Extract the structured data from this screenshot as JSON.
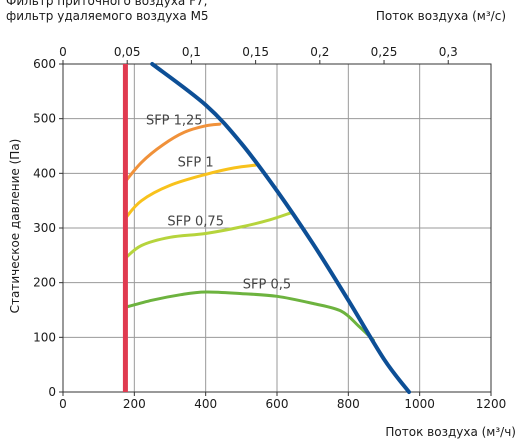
{
  "chart_data": {
    "type": "line",
    "title_lines": [
      "Фильтр приточного воздуха F7,",
      "фильтр удаляемого воздуха M5"
    ],
    "xlabel": "Поток воздуха (м³/ч)",
    "ylabel": "Статическое давление (Па)",
    "x2label": "Поток воздуха (м³/с)",
    "xlim": [
      0,
      1200
    ],
    "ylim": [
      0,
      600
    ],
    "x2lim": [
      0,
      0.3333
    ],
    "x_ticks": [
      0,
      200,
      400,
      600,
      800,
      1000,
      1200
    ],
    "y_ticks": [
      0,
      100,
      200,
      300,
      400,
      500,
      600
    ],
    "x2_ticks": [
      0,
      0.05,
      0.1,
      0.15,
      0.2,
      0.25,
      0.3
    ],
    "x2_tick_labels": [
      "0",
      "0,05",
      "0,1",
      "0,15",
      "0,2",
      "0,25",
      "0,3"
    ],
    "grid": true,
    "limit_line": {
      "x": 175,
      "y_range": [
        0,
        600
      ],
      "color": "#e03a50"
    },
    "fan_curve": {
      "color": "#0d4f96",
      "x": [
        250,
        400,
        500,
        600,
        700,
        800,
        900,
        970
      ],
      "y": [
        600,
        525,
        455,
        368,
        272,
        168,
        60,
        0
      ]
    },
    "series": [
      {
        "name": "SFP 1,25",
        "color": "#f0913a",
        "x": [
          175,
          220,
          280,
          340,
          400,
          440
        ],
        "y": [
          385,
          420,
          452,
          475,
          487,
          490
        ]
      },
      {
        "name": "SFP 1",
        "color": "#f8c21c",
        "x": [
          175,
          220,
          300,
          400,
          480,
          540
        ],
        "y": [
          318,
          350,
          378,
          398,
          410,
          415
        ]
      },
      {
        "name": "SFP 0,75",
        "color": "#b6d43c",
        "x": [
          175,
          220,
          300,
          400,
          500,
          580,
          640
        ],
        "y": [
          245,
          268,
          283,
          290,
          302,
          315,
          328
        ]
      },
      {
        "name": "SFP 0,5",
        "color": "#6db33f",
        "x": [
          175,
          250,
          330,
          400,
          500,
          600,
          700,
          780,
          830,
          870
        ],
        "y": [
          155,
          168,
          178,
          183,
          180,
          175,
          162,
          148,
          120,
          95
        ]
      }
    ]
  }
}
